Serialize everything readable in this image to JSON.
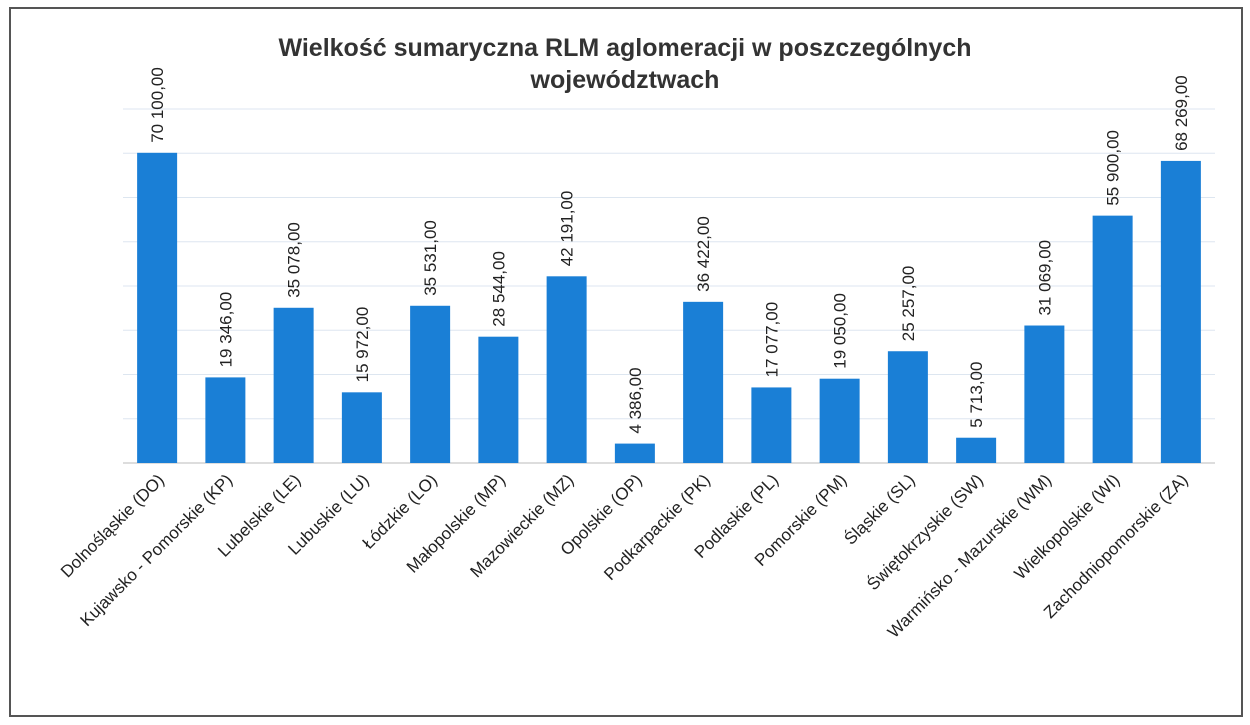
{
  "chart_data": {
    "type": "bar",
    "title": "Wielkość sumaryczna RLM aglomeracji w poszczególnych województwach",
    "categories": [
      "Dolnośląskie (DO)",
      "Kujawsko - Pomorskie (KP)",
      "Lubelskie (LE)",
      "Lubuskie (LU)",
      "Łódzkie (LO)",
      "Małopolskie (MP)",
      "Mazowieckie (MZ)",
      "Opolskie (OP)",
      "Podkarpackie (PK)",
      "Podlaskie (PL)",
      "Pomorskie (PM)",
      "Śląskie (SL)",
      "Świętokrzyskie (SW)",
      "Warmińsko - Mazurskie (WM)",
      "Wielkopolskie (WI)",
      "Zachodniopomorskie (ZA)"
    ],
    "values": [
      70100,
      19346,
      35078,
      15972,
      35531,
      28544,
      42191,
      4386,
      36422,
      17077,
      19050,
      25257,
      5713,
      31069,
      55900,
      68269
    ],
    "value_labels": [
      "70 100,00",
      "19 346,00",
      "35 078,00",
      "15 972,00",
      "35 531,00",
      "28 544,00",
      "42 191,00",
      "4 386,00",
      "36 422,00",
      "17 077,00",
      "19 050,00",
      "25 257,00",
      "5 713,00",
      "31 069,00",
      "55 900,00",
      "68 269,00"
    ],
    "color": "#1a7fd6",
    "ylim": [
      0,
      80000
    ],
    "yticks": [
      0,
      10000,
      20000,
      30000,
      40000,
      50000,
      60000,
      70000,
      80000
    ],
    "grid": true
  }
}
